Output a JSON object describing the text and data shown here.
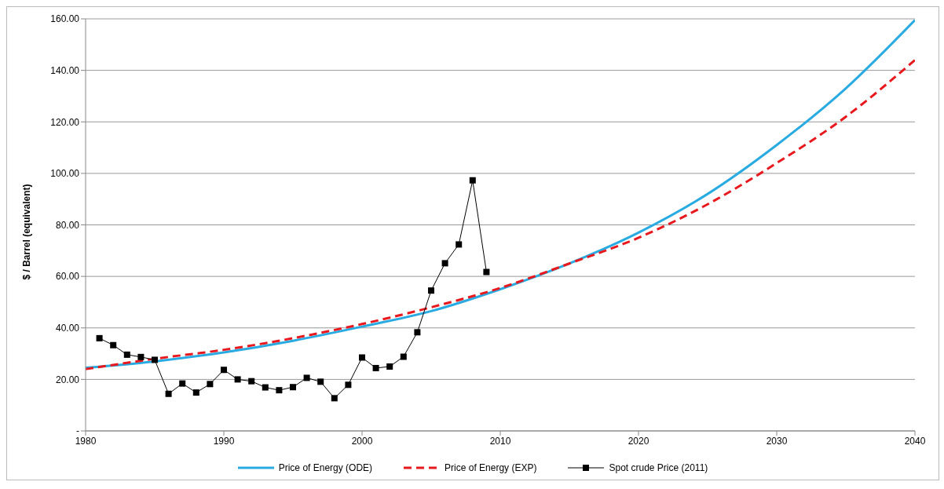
{
  "chart_data": {
    "type": "line",
    "ylabel": "$ / Barrel (equivalent)",
    "xlim": [
      1980,
      2040
    ],
    "xticks": [
      1980,
      1990,
      2000,
      2010,
      2020,
      2030,
      2040
    ],
    "ylim": [
      0,
      160
    ],
    "yticks": [
      {
        "value": 0,
        "label": "-"
      },
      {
        "value": 20,
        "label": "20.00"
      },
      {
        "value": 40,
        "label": "40.00"
      },
      {
        "value": 60,
        "label": "60.00"
      },
      {
        "value": 80,
        "label": "80.00"
      },
      {
        "value": 100,
        "label": "100.00"
      },
      {
        "value": 120,
        "label": "120.00"
      },
      {
        "value": 140,
        "label": "140.00"
      },
      {
        "value": 160,
        "label": "160.00"
      }
    ],
    "grid": "y",
    "legend": "bottom",
    "series": [
      {
        "name": "Price of Energy (ODE)",
        "color": "#29abe2",
        "line_style": "solid",
        "marker": "none",
        "x": [
          1980,
          1985,
          1990,
          1995,
          2000,
          2005,
          2010,
          2015,
          2020,
          2025,
          2030,
          2035,
          2040
        ],
        "values": [
          24.5,
          27,
          30.5,
          35,
          40.5,
          46.5,
          55,
          65,
          77,
          92,
          111,
          133,
          159.5
        ]
      },
      {
        "name": "Price of Energy (EXP)",
        "color": "#e8191e",
        "line_style": "dashed",
        "marker": "none",
        "x": [
          1980,
          1985,
          1990,
          1995,
          2000,
          2005,
          2010,
          2015,
          2020,
          2025,
          2030,
          2035,
          2040
        ],
        "values": [
          24,
          28,
          31.5,
          36,
          41.5,
          48,
          55.5,
          65,
          75,
          88,
          104,
          122,
          144
        ]
      },
      {
        "name": "Spot crude Price (2011)",
        "color": "#000000",
        "line_style": "solid",
        "marker": "square",
        "x": [
          1981,
          1982,
          1983,
          1984,
          1985,
          1986,
          1987,
          1988,
          1989,
          1990,
          1991,
          1992,
          1993,
          1994,
          1995,
          1996,
          1997,
          1998,
          1999,
          2000,
          2001,
          2002,
          2003,
          2004,
          2005,
          2006,
          2007,
          2008,
          2009
        ],
        "values": [
          36,
          33.3,
          29.6,
          28.7,
          27.6,
          14.4,
          18.4,
          14.9,
          18.2,
          23.7,
          20,
          19.3,
          16.9,
          15.8,
          17,
          20.6,
          19.1,
          12.7,
          17.9,
          28.5,
          24.4,
          25,
          28.8,
          38.3,
          54.5,
          65.1,
          72.4,
          97.3,
          61.7
        ]
      }
    ]
  }
}
